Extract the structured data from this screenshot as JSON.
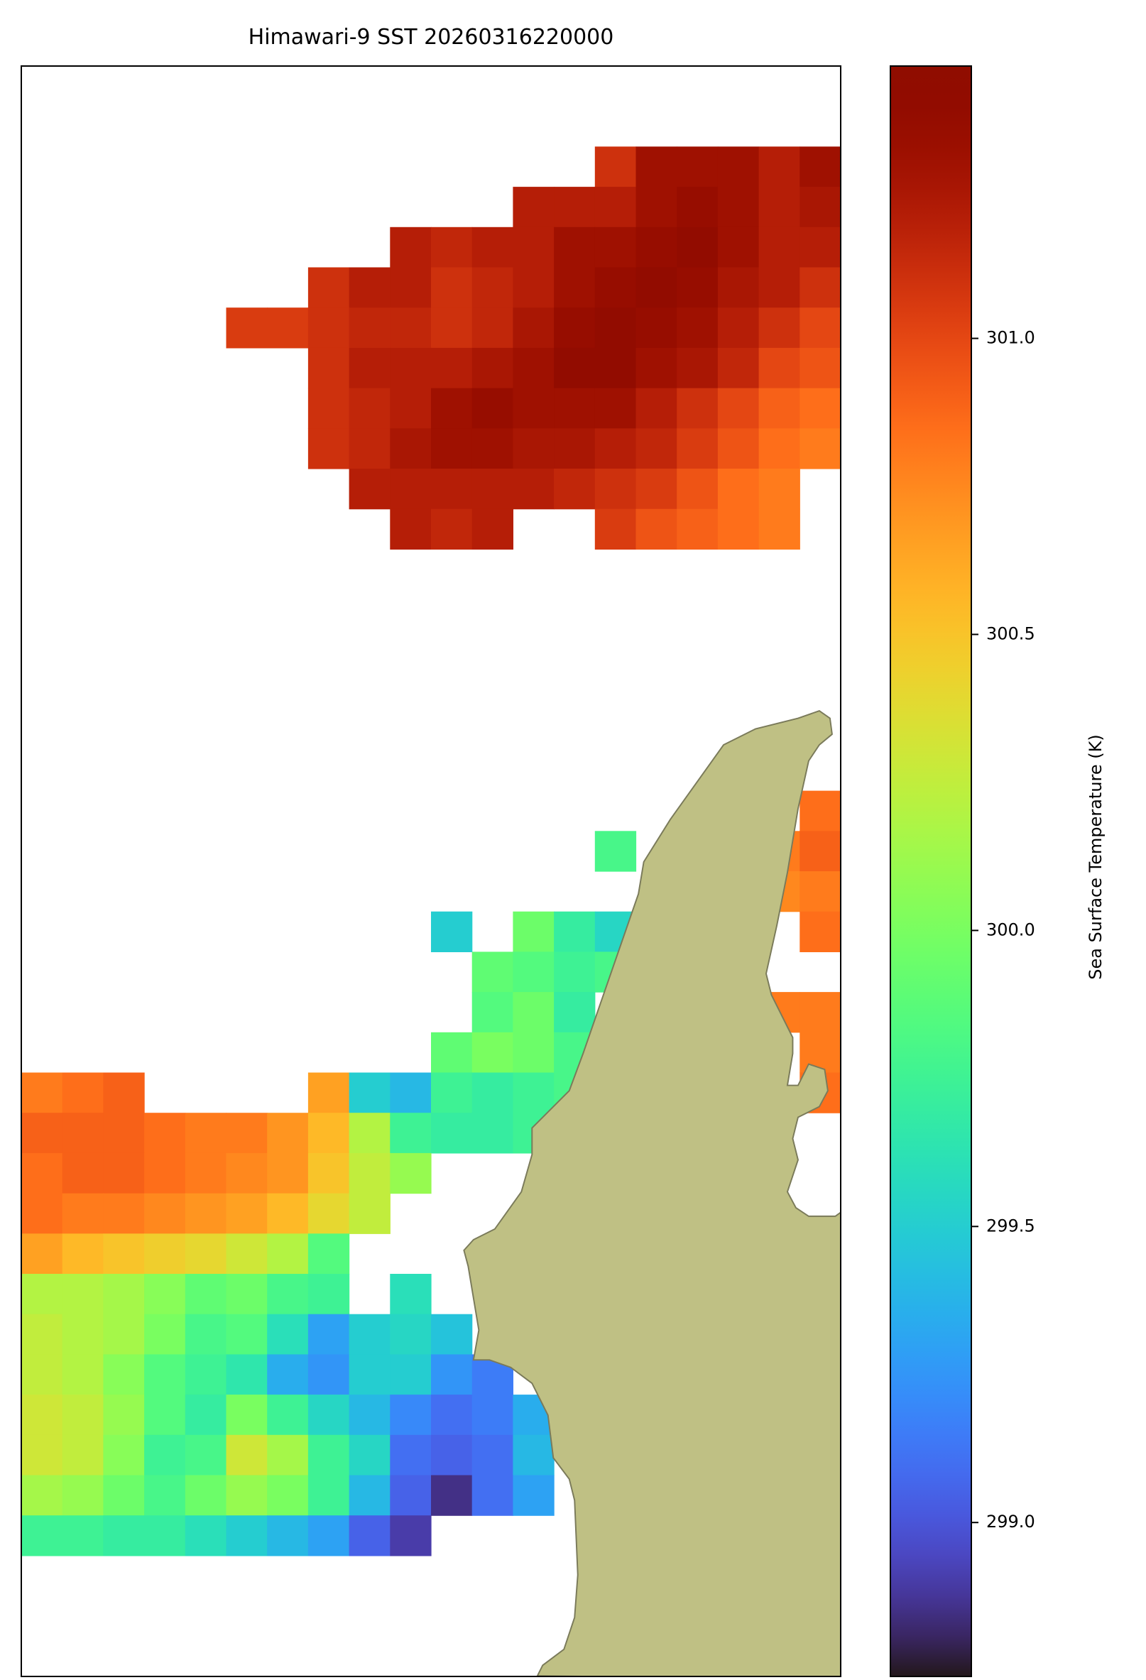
{
  "chart_data": {
    "type": "heatmap",
    "title": "Himawari-9 SST 20260316220000",
    "colorbar_label": "Sea Surface Temperature (K)",
    "colormap": "turbo",
    "clim": [
      298.74,
      301.46
    ],
    "cticks": [
      {
        "value": 299,
        "label": "299.0"
      },
      299.5,
      {
        "value": 300,
        "label": "300.0"
      },
      300.5,
      {
        "value": 301,
        "label": "301.0"
      }
    ],
    "z": [
      [
        null,
        null,
        null,
        null,
        null,
        null,
        null,
        null,
        null,
        null,
        null,
        null,
        null,
        null,
        null,
        null,
        null,
        null,
        null,
        null
      ],
      [
        null,
        null,
        null,
        null,
        null,
        null,
        null,
        null,
        null,
        null,
        null,
        null,
        null,
        null,
        null,
        null,
        null,
        null,
        null,
        null
      ],
      [
        null,
        null,
        null,
        null,
        null,
        null,
        null,
        null,
        null,
        null,
        null,
        null,
        null,
        null,
        301.1,
        301.3,
        301.3,
        301.3,
        301.2,
        301.3
      ],
      [
        null,
        null,
        null,
        null,
        null,
        null,
        null,
        null,
        null,
        null,
        null,
        null,
        301.2,
        301.2,
        301.2,
        301.3,
        301.35,
        301.3,
        301.2,
        301.25
      ],
      [
        null,
        null,
        null,
        null,
        null,
        null,
        null,
        null,
        null,
        301.2,
        301.15,
        301.2,
        301.2,
        301.3,
        301.3,
        301.35,
        301.4,
        301.3,
        301.2,
        301.2
      ],
      [
        null,
        null,
        null,
        null,
        null,
        null,
        null,
        301.1,
        301.2,
        301.2,
        301.1,
        301.15,
        301.2,
        301.3,
        301.35,
        301.4,
        301.35,
        301.25,
        301.2,
        301.1
      ],
      [
        null,
        null,
        null,
        null,
        null,
        301.05,
        301.05,
        301.1,
        301.15,
        301.15,
        301.1,
        301.15,
        301.25,
        301.35,
        301.4,
        301.35,
        301.3,
        301.2,
        301.1,
        301.0
      ],
      [
        null,
        null,
        null,
        null,
        null,
        null,
        null,
        301.1,
        301.2,
        301.2,
        301.2,
        301.25,
        301.3,
        301.4,
        301.4,
        301.3,
        301.25,
        301.15,
        301.0,
        300.95
      ],
      [
        null,
        null,
        null,
        null,
        null,
        null,
        null,
        301.1,
        301.15,
        301.2,
        301.3,
        301.35,
        301.3,
        301.3,
        301.3,
        301.2,
        301.1,
        301.0,
        300.9,
        300.85
      ],
      [
        null,
        null,
        null,
        null,
        null,
        null,
        null,
        301.1,
        301.15,
        301.25,
        301.3,
        301.3,
        301.25,
        301.25,
        301.2,
        301.15,
        301.05,
        300.95,
        300.85,
        300.8
      ],
      [
        null,
        null,
        null,
        null,
        null,
        null,
        null,
        null,
        301.2,
        301.2,
        301.2,
        301.2,
        301.2,
        301.15,
        301.1,
        301.05,
        300.95,
        300.85,
        300.8,
        null
      ],
      [
        null,
        null,
        null,
        null,
        null,
        null,
        null,
        null,
        null,
        301.2,
        301.15,
        301.2,
        null,
        null,
        301.05,
        300.95,
        300.9,
        300.85,
        300.8,
        null
      ],
      [
        null,
        null,
        null,
        null,
        null,
        null,
        null,
        null,
        null,
        null,
        null,
        null,
        null,
        null,
        null,
        null,
        null,
        null,
        null,
        null
      ],
      [
        null,
        null,
        null,
        null,
        null,
        null,
        null,
        null,
        null,
        null,
        null,
        null,
        null,
        null,
        null,
        null,
        null,
        null,
        null,
        null
      ],
      [
        null,
        null,
        null,
        null,
        null,
        null,
        null,
        null,
        null,
        null,
        null,
        null,
        null,
        null,
        null,
        null,
        null,
        null,
        null,
        null
      ],
      [
        null,
        null,
        null,
        null,
        null,
        null,
        null,
        null,
        null,
        null,
        null,
        null,
        null,
        null,
        null,
        null,
        null,
        null,
        null,
        null
      ],
      [
        null,
        null,
        null,
        null,
        null,
        null,
        null,
        null,
        null,
        null,
        null,
        null,
        null,
        null,
        null,
        null,
        null,
        null,
        null,
        null
      ],
      [
        null,
        null,
        null,
        null,
        null,
        null,
        null,
        null,
        null,
        null,
        null,
        null,
        null,
        null,
        null,
        null,
        null,
        null,
        null,
        null
      ],
      [
        null,
        null,
        null,
        null,
        null,
        null,
        null,
        null,
        null,
        null,
        null,
        null,
        null,
        null,
        null,
        null,
        null,
        null,
        null,
        300.85
      ],
      [
        null,
        null,
        null,
        null,
        null,
        null,
        null,
        null,
        null,
        null,
        null,
        null,
        null,
        null,
        299.8,
        null,
        null,
        null,
        300.8,
        300.9
      ],
      [
        null,
        null,
        null,
        null,
        null,
        null,
        null,
        null,
        null,
        null,
        null,
        null,
        null,
        null,
        null,
        null,
        null,
        null,
        300.75,
        300.8
      ],
      [
        null,
        null,
        null,
        null,
        null,
        null,
        null,
        null,
        null,
        null,
        299.5,
        null,
        299.95,
        299.7,
        299.55,
        null,
        null,
        null,
        null,
        300.85
      ],
      [
        null,
        null,
        null,
        null,
        null,
        null,
        null,
        null,
        null,
        null,
        null,
        299.9,
        299.85,
        299.75,
        299.8,
        null,
        null,
        null,
        null,
        null
      ],
      [
        null,
        null,
        null,
        null,
        null,
        null,
        null,
        null,
        null,
        null,
        null,
        299.85,
        299.95,
        299.7,
        null,
        null,
        null,
        null,
        300.8,
        300.8
      ],
      [
        null,
        null,
        null,
        null,
        null,
        null,
        null,
        null,
        null,
        null,
        299.9,
        300.0,
        299.95,
        299.8,
        null,
        null,
        null,
        null,
        null,
        300.8
      ],
      [
        300.8,
        300.85,
        300.9,
        null,
        null,
        null,
        null,
        300.65,
        299.5,
        299.4,
        299.75,
        299.7,
        299.75,
        299.8,
        null,
        null,
        null,
        null,
        null,
        300.85
      ],
      [
        300.9,
        300.9,
        300.9,
        300.85,
        300.8,
        300.8,
        300.7,
        300.55,
        300.2,
        299.75,
        299.7,
        299.7,
        299.75,
        null,
        null,
        null,
        null,
        null,
        null,
        null
      ],
      [
        300.85,
        300.9,
        300.9,
        300.85,
        300.8,
        300.75,
        300.7,
        300.5,
        300.25,
        300.1,
        null,
        null,
        null,
        null,
        null,
        null,
        null,
        null,
        null,
        null
      ],
      [
        300.85,
        300.8,
        300.8,
        300.75,
        300.7,
        300.65,
        300.55,
        300.4,
        300.25,
        null,
        null,
        null,
        null,
        null,
        null,
        null,
        null,
        null,
        null,
        null
      ],
      [
        300.65,
        300.55,
        300.5,
        300.45,
        300.4,
        300.3,
        300.2,
        299.85,
        null,
        null,
        null,
        null,
        null,
        null,
        null,
        null,
        null,
        null,
        null,
        null
      ],
      [
        300.2,
        300.2,
        300.15,
        300.05,
        299.9,
        299.95,
        299.8,
        299.75,
        null,
        299.6,
        null,
        null,
        null,
        null,
        null,
        null,
        null,
        null,
        null,
        null
      ],
      [
        300.25,
        300.2,
        300.15,
        300.0,
        299.8,
        299.85,
        299.6,
        299.3,
        299.5,
        299.55,
        299.45,
        null,
        null,
        null,
        null,
        null,
        null,
        null,
        null,
        null
      ],
      [
        300.25,
        300.2,
        300.05,
        299.85,
        299.75,
        299.65,
        299.35,
        299.25,
        299.5,
        299.5,
        299.25,
        299.15,
        null,
        null,
        null,
        null,
        null,
        null,
        null,
        null
      ],
      [
        300.3,
        300.25,
        300.1,
        299.85,
        299.7,
        300.0,
        299.75,
        299.55,
        299.4,
        299.2,
        299.1,
        299.15,
        299.35,
        null,
        null,
        null,
        null,
        null,
        null,
        null
      ],
      [
        300.3,
        300.25,
        300.05,
        299.75,
        299.8,
        300.3,
        300.15,
        299.75,
        299.55,
        299.1,
        299.05,
        299.1,
        299.4,
        null,
        null,
        null,
        null,
        null,
        null,
        null
      ],
      [
        300.15,
        300.1,
        299.95,
        299.8,
        299.95,
        300.1,
        300.0,
        299.75,
        299.4,
        299.05,
        298.85,
        299.1,
        299.3,
        null,
        null,
        null,
        null,
        null,
        null,
        null
      ],
      [
        299.75,
        299.75,
        299.7,
        299.7,
        299.6,
        299.5,
        299.4,
        299.3,
        299.05,
        298.9,
        null,
        null,
        null,
        null,
        null,
        null,
        null,
        null,
        null,
        null
      ],
      [
        null,
        null,
        null,
        null,
        null,
        null,
        null,
        null,
        null,
        null,
        null,
        null,
        null,
        null,
        null,
        null,
        null,
        null,
        null,
        null
      ],
      [
        null,
        null,
        null,
        null,
        null,
        null,
        null,
        null,
        null,
        null,
        null,
        null,
        null,
        null,
        null,
        null,
        null,
        null,
        null,
        null
      ],
      [
        null,
        null,
        null,
        null,
        null,
        null,
        null,
        null,
        null,
        null,
        null,
        null,
        null,
        null,
        null,
        null,
        null,
        null,
        null,
        null
      ]
    ]
  }
}
